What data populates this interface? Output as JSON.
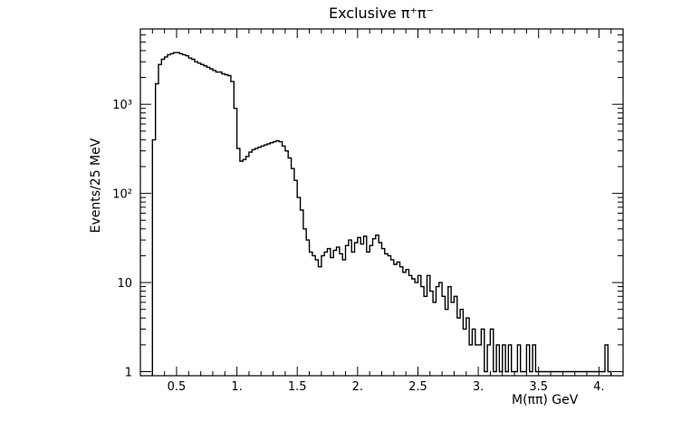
{
  "chart_data": {
    "type": "histogram",
    "title": "Exclusive π⁺π⁻",
    "xlabel": "M(ππ)  GeV",
    "ylabel": "Events/25 MeV",
    "xlim": [
      0.2,
      4.2
    ],
    "ylim": [
      0.9,
      7000
    ],
    "yscale": "log",
    "grid": false,
    "bin_width": 0.025,
    "x_ticks": [
      {
        "value": 0.5,
        "label": "0.5"
      },
      {
        "value": 1.0,
        "label": "1."
      },
      {
        "value": 1.5,
        "label": "1.5"
      },
      {
        "value": 2.0,
        "label": "2."
      },
      {
        "value": 2.5,
        "label": "2.5"
      },
      {
        "value": 3.0,
        "label": "3."
      },
      {
        "value": 3.5,
        "label": "3.5"
      },
      {
        "value": 4.0,
        "label": "4."
      }
    ],
    "y_ticks": [
      {
        "value": 1,
        "label": "1"
      },
      {
        "value": 10,
        "label": "10"
      },
      {
        "value": 100,
        "label": "10²"
      },
      {
        "value": 1000,
        "label": "10³"
      }
    ],
    "series": [
      {
        "bins": [
          [
            0.3,
            400
          ],
          [
            0.325,
            1700
          ],
          [
            0.35,
            2800
          ],
          [
            0.375,
            3200
          ],
          [
            0.4,
            3400
          ],
          [
            0.425,
            3600
          ],
          [
            0.45,
            3700
          ],
          [
            0.475,
            3800
          ],
          [
            0.5,
            3800
          ],
          [
            0.525,
            3700
          ],
          [
            0.55,
            3600
          ],
          [
            0.575,
            3500
          ],
          [
            0.6,
            3300
          ],
          [
            0.625,
            3200
          ],
          [
            0.65,
            3000
          ],
          [
            0.675,
            2900
          ],
          [
            0.7,
            2800
          ],
          [
            0.725,
            2700
          ],
          [
            0.75,
            2600
          ],
          [
            0.775,
            2500
          ],
          [
            0.8,
            2400
          ],
          [
            0.825,
            2300
          ],
          [
            0.85,
            2300
          ],
          [
            0.875,
            2200
          ],
          [
            0.9,
            2150
          ],
          [
            0.925,
            2100
          ],
          [
            0.95,
            1800
          ],
          [
            0.975,
            900
          ],
          [
            1.0,
            320
          ],
          [
            1.025,
            230
          ],
          [
            1.05,
            240
          ],
          [
            1.075,
            260
          ],
          [
            1.1,
            290
          ],
          [
            1.125,
            310
          ],
          [
            1.15,
            320
          ],
          [
            1.175,
            330
          ],
          [
            1.2,
            340
          ],
          [
            1.225,
            350
          ],
          [
            1.25,
            360
          ],
          [
            1.275,
            370
          ],
          [
            1.3,
            380
          ],
          [
            1.325,
            390
          ],
          [
            1.35,
            380
          ],
          [
            1.375,
            340
          ],
          [
            1.4,
            300
          ],
          [
            1.425,
            250
          ],
          [
            1.45,
            190
          ],
          [
            1.475,
            140
          ],
          [
            1.5,
            90
          ],
          [
            1.525,
            65
          ],
          [
            1.55,
            40
          ],
          [
            1.575,
            30
          ],
          [
            1.6,
            22
          ],
          [
            1.625,
            20
          ],
          [
            1.65,
            18
          ],
          [
            1.675,
            15
          ],
          [
            1.7,
            20
          ],
          [
            1.725,
            22
          ],
          [
            1.75,
            24
          ],
          [
            1.775,
            19
          ],
          [
            1.8,
            23
          ],
          [
            1.825,
            25
          ],
          [
            1.85,
            21
          ],
          [
            1.875,
            18
          ],
          [
            1.9,
            26
          ],
          [
            1.925,
            30
          ],
          [
            1.95,
            22
          ],
          [
            1.975,
            28
          ],
          [
            2.0,
            32
          ],
          [
            2.025,
            27
          ],
          [
            2.05,
            33
          ],
          [
            2.075,
            22
          ],
          [
            2.1,
            26
          ],
          [
            2.125,
            31
          ],
          [
            2.15,
            34
          ],
          [
            2.175,
            28
          ],
          [
            2.2,
            24
          ],
          [
            2.225,
            21
          ],
          [
            2.25,
            20
          ],
          [
            2.275,
            18
          ],
          [
            2.3,
            16
          ],
          [
            2.325,
            17
          ],
          [
            2.35,
            15
          ],
          [
            2.375,
            13
          ],
          [
            2.4,
            14
          ],
          [
            2.425,
            12
          ],
          [
            2.45,
            11
          ],
          [
            2.475,
            10
          ],
          [
            2.5,
            12
          ],
          [
            2.525,
            9
          ],
          [
            2.55,
            7
          ],
          [
            2.575,
            12
          ],
          [
            2.6,
            8
          ],
          [
            2.625,
            6
          ],
          [
            2.65,
            9
          ],
          [
            2.675,
            10
          ],
          [
            2.7,
            7
          ],
          [
            2.725,
            5
          ],
          [
            2.75,
            9
          ],
          [
            2.775,
            6
          ],
          [
            2.8,
            7
          ],
          [
            2.825,
            4
          ],
          [
            2.85,
            5
          ],
          [
            2.875,
            3
          ],
          [
            2.9,
            4
          ],
          [
            2.925,
            2
          ],
          [
            2.95,
            3
          ],
          [
            2.975,
            2
          ],
          [
            3.0,
            2
          ],
          [
            3.025,
            3
          ],
          [
            3.05,
            1
          ],
          [
            3.075,
            2
          ],
          [
            3.1,
            3
          ],
          [
            3.125,
            1
          ],
          [
            3.15,
            2
          ],
          [
            3.175,
            1
          ],
          [
            3.2,
            2
          ],
          [
            3.225,
            1
          ],
          [
            3.25,
            2
          ],
          [
            3.275,
            1
          ],
          [
            3.3,
            1
          ],
          [
            3.325,
            2
          ],
          [
            3.35,
            1
          ],
          [
            3.375,
            1
          ],
          [
            3.4,
            2
          ],
          [
            3.425,
            1
          ],
          [
            3.45,
            2
          ],
          [
            3.475,
            1
          ],
          [
            3.5,
            1
          ],
          [
            3.525,
            1
          ],
          [
            3.55,
            1
          ],
          [
            3.575,
            1
          ],
          [
            3.6,
            1
          ],
          [
            3.625,
            1
          ],
          [
            3.65,
            1
          ],
          [
            3.675,
            1
          ],
          [
            3.7,
            1
          ],
          [
            3.725,
            1
          ],
          [
            3.75,
            1
          ],
          [
            3.775,
            1
          ],
          [
            3.8,
            1
          ],
          [
            3.825,
            1
          ],
          [
            3.85,
            1
          ],
          [
            3.875,
            1
          ],
          [
            3.9,
            1
          ],
          [
            3.925,
            1
          ],
          [
            3.95,
            1
          ],
          [
            3.975,
            1
          ],
          [
            4.0,
            1
          ],
          [
            4.025,
            1
          ],
          [
            4.05,
            2
          ],
          [
            4.075,
            1
          ]
        ]
      }
    ]
  }
}
